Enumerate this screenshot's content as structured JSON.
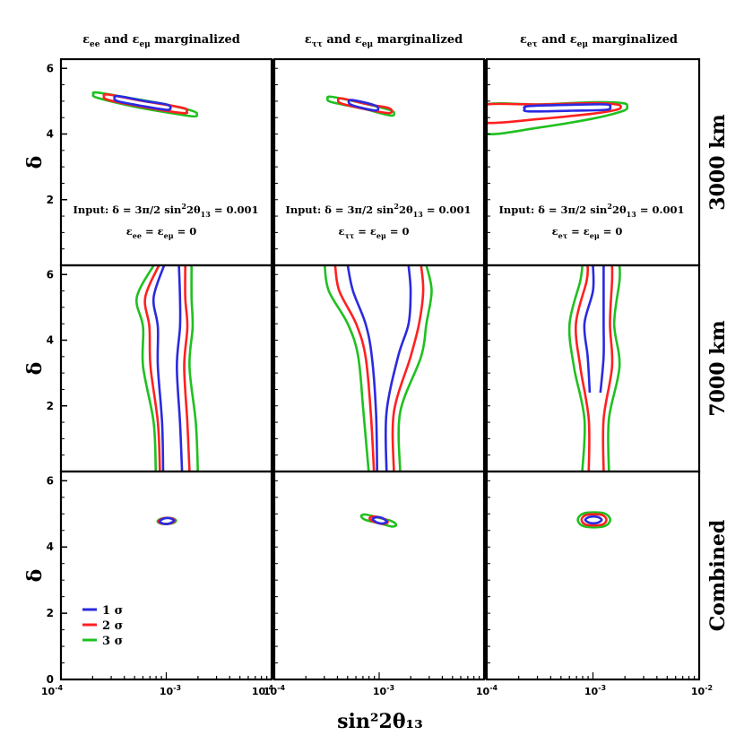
{
  "chart_data": {
    "type": "contour",
    "title": "",
    "xlabel": "sin²2θ₁₃",
    "ylabel": "δ",
    "xscale": "log",
    "xlim": [
      0.0001,
      0.01
    ],
    "ylim": [
      0,
      6.28
    ],
    "x_ticks": [
      {
        "base": "10",
        "exp": "-4"
      },
      {
        "base": "10",
        "exp": "-3"
      },
      {
        "base": "10",
        "exp": "-2"
      }
    ],
    "y_ticks": [
      "0",
      "2",
      "4",
      "6"
    ],
    "columns": [
      {
        "e1": "ee",
        "e2": "eμ",
        "suffix": "marginalized",
        "input_prefix": "Input:",
        "input_delta": "δ = 3π/2",
        "input_theta_pre": "sin",
        "input_theta_exp": "2",
        "input_theta_post": "2θ",
        "input_theta_sub": "13",
        "input_theta_val": "=  0.001",
        "eps_a": "ee",
        "eps_b": "eμ",
        "eps_val": "= 0"
      },
      {
        "e1": "ττ",
        "e2": "eμ",
        "suffix": "marginalized",
        "input_prefix": "Input:",
        "input_delta": "δ = 3π/2",
        "input_theta_pre": "sin",
        "input_theta_exp": "2",
        "input_theta_post": "2θ",
        "input_theta_sub": "13",
        "input_theta_val": "=  0.001",
        "eps_a": "ττ",
        "eps_b": "eμ",
        "eps_val": "= 0"
      },
      {
        "e1": "eτ",
        "e2": "eμ",
        "suffix": "marginalized",
        "input_prefix": "Input:",
        "input_delta": "δ = 3π/2",
        "input_theta_pre": "sin",
        "input_theta_exp": "2",
        "input_theta_post": "2θ",
        "input_theta_sub": "13",
        "input_theta_val": "=  0.001",
        "eps_a": "eτ",
        "eps_b": "eμ",
        "eps_val": "= 0"
      }
    ],
    "rows": [
      "3000 km",
      "7000 km",
      "Combined"
    ],
    "epsilon": "ε",
    "and_word": "and",
    "legend": [
      {
        "label": "1 σ",
        "color": "#2a2ae0"
      },
      {
        "label": "2 σ",
        "color": "#ff2020"
      },
      {
        "label": "3 σ",
        "color": "#20c020"
      }
    ],
    "regions": {
      "0-0": [
        {
          "sigma": 3,
          "band": [
            [
              -3.65,
              5.18,
              0.07
            ],
            [
              -3.3,
              4.95,
              0.12
            ],
            [
              -3.0,
              4.78,
              0.12
            ],
            [
              -2.75,
              4.62,
              0.08
            ]
          ]
        },
        {
          "sigma": 2,
          "band": [
            [
              -3.55,
              5.12,
              0.05
            ],
            [
              -3.25,
              4.93,
              0.09
            ],
            [
              -2.85,
              4.72,
              0.06
            ]
          ]
        },
        {
          "sigma": 1,
          "band": [
            [
              -3.45,
              5.07,
              0.03
            ],
            [
              -3.2,
              4.92,
              0.05
            ],
            [
              -3.0,
              4.82,
              0.03
            ]
          ]
        }
      ],
      "0-1": [
        {
          "sigma": 3,
          "band": [
            [
              -3.45,
              5.05,
              0.05
            ],
            [
              -3.15,
              4.85,
              0.07
            ],
            [
              -2.9,
              4.65,
              0.04
            ]
          ]
        },
        {
          "sigma": 2,
          "band": [
            [
              -3.35,
              5.0,
              0.03
            ],
            [
              -3.1,
              4.82,
              0.05
            ],
            [
              -2.92,
              4.72,
              0.03
            ]
          ]
        },
        {
          "sigma": 1,
          "band": [
            [
              -3.25,
              4.95,
              0.02
            ],
            [
              -3.05,
              4.8,
              0.03
            ]
          ]
        }
      ],
      "0-2": [
        {
          "sigma": 3,
          "band": [
            [
              -4.0,
              4.45,
              0.45
            ],
            [
              -3.5,
              4.55,
              0.35
            ],
            [
              -3.0,
              4.72,
              0.25
            ],
            [
              -2.72,
              4.82,
              0.12
            ]
          ]
        },
        {
          "sigma": 2,
          "band": [
            [
              -4.0,
              4.62,
              0.28
            ],
            [
              -3.5,
              4.68,
              0.22
            ],
            [
              -3.0,
              4.78,
              0.16
            ],
            [
              -2.78,
              4.82,
              0.08
            ]
          ]
        },
        {
          "sigma": 1,
          "band": [
            [
              -3.6,
              4.77,
              0.05
            ],
            [
              -3.2,
              4.8,
              0.09
            ],
            [
              -2.88,
              4.82,
              0.05
            ]
          ]
        }
      ],
      "1-0": [
        {
          "sigma": 3,
          "vband": [
            [
              0.0,
              -3.1,
              -2.7
            ],
            [
              1.5,
              -3.12,
              -2.72
            ],
            [
              3.2,
              -3.22,
              -2.78
            ],
            [
              4.4,
              -3.22,
              -2.75
            ],
            [
              5.3,
              -3.28,
              -2.76
            ],
            [
              6.28,
              -3.12,
              -2.76
            ]
          ]
        },
        {
          "sigma": 2,
          "vband": [
            [
              0.0,
              -3.06,
              -2.78
            ],
            [
              1.5,
              -3.08,
              -2.8
            ],
            [
              3.2,
              -3.15,
              -2.83
            ],
            [
              4.4,
              -3.16,
              -2.8
            ],
            [
              5.3,
              -3.2,
              -2.82
            ],
            [
              6.28,
              -3.07,
              -2.82
            ]
          ]
        },
        {
          "sigma": 1,
          "vband": [
            [
              0.0,
              -3.03,
              -2.85
            ],
            [
              1.5,
              -3.04,
              -2.87
            ],
            [
              3.2,
              -3.08,
              -2.9
            ],
            [
              4.4,
              -3.08,
              -2.87
            ],
            [
              5.3,
              -3.12,
              -2.87
            ],
            [
              6.28,
              -3.02,
              -2.88
            ]
          ]
        }
      ],
      "1-1": [
        {
          "sigma": 3,
          "vband": [
            [
              0.0,
              -3.1,
              -2.8
            ],
            [
              1.8,
              -3.15,
              -2.8
            ],
            [
              3.5,
              -3.2,
              -2.6
            ],
            [
              4.5,
              -3.3,
              -2.55
            ],
            [
              5.5,
              -3.48,
              -2.5
            ],
            [
              6.28,
              -3.52,
              -2.55
            ]
          ]
        },
        {
          "sigma": 2,
          "vband": [
            [
              0.0,
              -3.05,
              -2.86
            ],
            [
              1.8,
              -3.08,
              -2.86
            ],
            [
              3.5,
              -3.13,
              -2.7
            ],
            [
              4.5,
              -3.22,
              -2.62
            ],
            [
              5.5,
              -3.38,
              -2.58
            ],
            [
              6.28,
              -3.42,
              -2.6
            ]
          ]
        },
        {
          "sigma": 1,
          "vband": [
            [
              0.0,
              -3.02,
              -2.93
            ],
            [
              1.8,
              -3.03,
              -2.93
            ],
            [
              3.5,
              -3.07,
              -2.82
            ],
            [
              4.5,
              -3.13,
              -2.72
            ],
            [
              5.5,
              -3.25,
              -2.7
            ],
            [
              6.28,
              -3.3,
              -2.72
            ]
          ]
        }
      ],
      "1-2": [
        {
          "sigma": 3,
          "vband": [
            [
              0.0,
              -3.1,
              -2.85
            ],
            [
              1.6,
              -3.08,
              -2.85
            ],
            [
              3.2,
              -3.18,
              -2.75
            ],
            [
              4.5,
              -3.22,
              -2.8
            ],
            [
              5.8,
              -3.12,
              -2.75
            ],
            [
              6.28,
              -3.1,
              -2.75
            ]
          ]
        },
        {
          "sigma": 2,
          "vband": [
            [
              0.0,
              -3.04,
              -2.9
            ],
            [
              1.6,
              -3.04,
              -2.9
            ],
            [
              3.2,
              -3.12,
              -2.82
            ],
            [
              4.5,
              -3.16,
              -2.84
            ],
            [
              5.8,
              -3.06,
              -2.82
            ],
            [
              6.28,
              -3.05,
              -2.82
            ]
          ]
        },
        {
          "sigma": 1,
          "vband": [
            [
              2.4,
              -3.03,
              -2.93
            ],
            [
              3.5,
              -3.05,
              -2.9
            ],
            [
              4.5,
              -3.08,
              -2.9
            ],
            [
              5.5,
              -3.0,
              -2.9
            ],
            [
              6.28,
              -3.0,
              -2.9
            ]
          ]
        }
      ],
      "2-0": [
        {
          "sigma": 3,
          "band": [
            [
              -3.04,
              4.78,
              0.07
            ],
            [
              -2.95,
              4.79,
              0.07
            ]
          ]
        },
        {
          "sigma": 2,
          "band": [
            [
              -3.03,
              4.78,
              0.05
            ],
            [
              -2.96,
              4.79,
              0.05
            ]
          ]
        },
        {
          "sigma": 1,
          "band": [
            [
              -3.02,
              4.78,
              0.03
            ],
            [
              -2.97,
              4.79,
              0.03
            ]
          ]
        }
      ],
      "2-1": [
        {
          "sigma": 3,
          "band": [
            [
              -3.13,
              4.9,
              0.07
            ],
            [
              -3.0,
              4.8,
              0.06
            ],
            [
              -2.88,
              4.7,
              0.05
            ]
          ]
        },
        {
          "sigma": 2,
          "band": [
            [
              -3.05,
              4.84,
              0.05
            ],
            [
              -2.96,
              4.78,
              0.05
            ]
          ]
        },
        {
          "sigma": 1,
          "band": [
            [
              -3.02,
              4.82,
              0.03
            ],
            [
              -2.97,
              4.79,
              0.03
            ]
          ]
        }
      ],
      "2-2": [
        {
          "sigma": 3,
          "band": [
            [
              -3.08,
              4.82,
              0.2
            ],
            [
              -2.9,
              4.82,
              0.2
            ]
          ]
        },
        {
          "sigma": 2,
          "band": [
            [
              -3.06,
              4.82,
              0.15
            ],
            [
              -2.92,
              4.82,
              0.15
            ]
          ]
        },
        {
          "sigma": 1,
          "band": [
            [
              -3.03,
              4.82,
              0.09
            ],
            [
              -2.96,
              4.82,
              0.09
            ]
          ]
        }
      ]
    }
  }
}
